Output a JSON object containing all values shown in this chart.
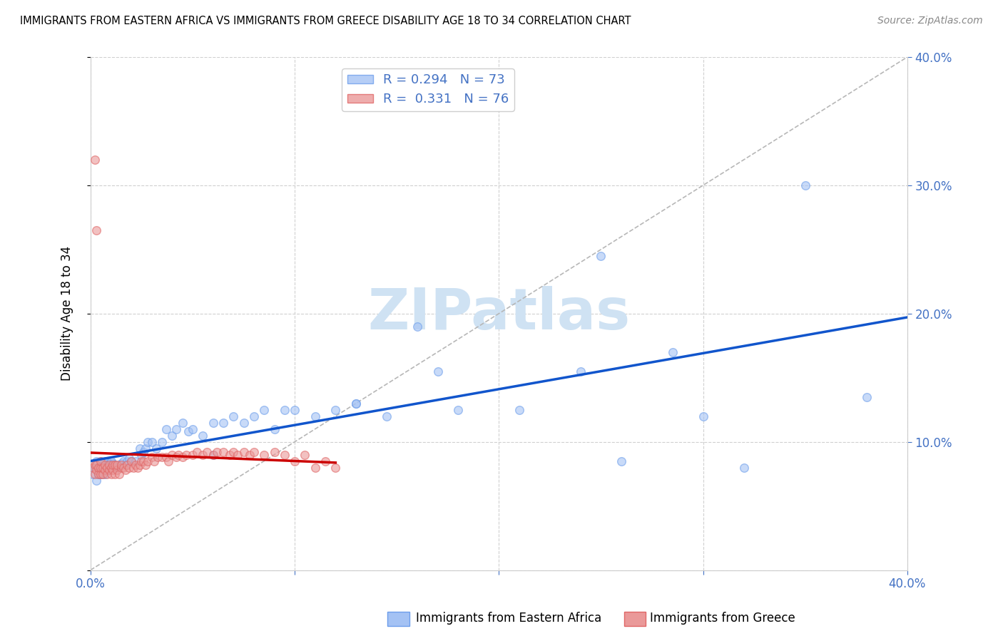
{
  "title": "IMMIGRANTS FROM EASTERN AFRICA VS IMMIGRANTS FROM GREECE DISABILITY AGE 18 TO 34 CORRELATION CHART",
  "source": "Source: ZipAtlas.com",
  "ylabel": "Disability Age 18 to 34",
  "r_eastern_africa": 0.294,
  "n_eastern_africa": 73,
  "r_greece": 0.331,
  "n_greece": 76,
  "color_eastern_africa": "#a4c2f4",
  "color_eastern_africa_edge": "#6d9eeb",
  "color_greece": "#ea9999",
  "color_greece_edge": "#e06666",
  "trendline_color_eastern_africa": "#1155cc",
  "trendline_color_greece": "#cc0000",
  "diagonal_color": "#b7b7b7",
  "legend_label_eastern_africa": "Immigrants from Eastern Africa",
  "legend_label_greece": "Immigrants from Greece",
  "watermark": "ZIPatlas",
  "watermark_color": "#cfe2f3",
  "background_color": "#ffffff",
  "xlim": [
    0.0,
    0.4
  ],
  "ylim": [
    0.0,
    0.4
  ],
  "tick_color": "#4472c4",
  "x_ea": [
    0.001,
    0.002,
    0.003,
    0.003,
    0.004,
    0.004,
    0.005,
    0.005,
    0.005,
    0.006,
    0.006,
    0.007,
    0.007,
    0.008,
    0.008,
    0.009,
    0.009,
    0.01,
    0.01,
    0.011,
    0.011,
    0.012,
    0.013,
    0.014,
    0.015,
    0.016,
    0.017,
    0.018,
    0.019,
    0.02,
    0.022,
    0.024,
    0.025,
    0.026,
    0.027,
    0.028,
    0.03,
    0.032,
    0.035,
    0.037,
    0.04,
    0.042,
    0.045,
    0.048,
    0.05,
    0.055,
    0.06,
    0.065,
    0.07,
    0.075,
    0.08,
    0.085,
    0.09,
    0.095,
    0.1,
    0.11,
    0.12,
    0.13,
    0.145,
    0.16,
    0.18,
    0.21,
    0.24,
    0.26,
    0.285,
    0.3,
    0.32,
    0.35,
    0.38,
    0.25,
    0.17,
    0.13,
    0.06
  ],
  "y_ea": [
    0.075,
    0.08,
    0.07,
    0.085,
    0.075,
    0.08,
    0.08,
    0.075,
    0.085,
    0.075,
    0.08,
    0.085,
    0.075,
    0.08,
    0.085,
    0.078,
    0.083,
    0.08,
    0.085,
    0.08,
    0.083,
    0.082,
    0.08,
    0.082,
    0.083,
    0.085,
    0.082,
    0.085,
    0.087,
    0.085,
    0.085,
    0.095,
    0.09,
    0.092,
    0.095,
    0.1,
    0.1,
    0.095,
    0.1,
    0.11,
    0.105,
    0.11,
    0.115,
    0.108,
    0.11,
    0.105,
    0.115,
    0.115,
    0.12,
    0.115,
    0.12,
    0.125,
    0.11,
    0.125,
    0.125,
    0.12,
    0.125,
    0.13,
    0.12,
    0.19,
    0.125,
    0.125,
    0.155,
    0.085,
    0.17,
    0.12,
    0.08,
    0.3,
    0.135,
    0.245,
    0.155,
    0.13,
    0.09
  ],
  "x_gr": [
    0.001,
    0.002,
    0.002,
    0.003,
    0.003,
    0.004,
    0.004,
    0.005,
    0.005,
    0.005,
    0.006,
    0.006,
    0.007,
    0.007,
    0.008,
    0.008,
    0.009,
    0.009,
    0.01,
    0.01,
    0.011,
    0.011,
    0.012,
    0.012,
    0.013,
    0.013,
    0.014,
    0.015,
    0.015,
    0.016,
    0.017,
    0.018,
    0.019,
    0.02,
    0.021,
    0.022,
    0.023,
    0.024,
    0.025,
    0.026,
    0.027,
    0.028,
    0.03,
    0.031,
    0.033,
    0.035,
    0.037,
    0.038,
    0.04,
    0.042,
    0.043,
    0.045,
    0.047,
    0.05,
    0.052,
    0.055,
    0.057,
    0.06,
    0.062,
    0.065,
    0.068,
    0.07,
    0.072,
    0.075,
    0.078,
    0.08,
    0.085,
    0.09,
    0.095,
    0.1,
    0.105,
    0.11,
    0.115,
    0.12,
    0.002,
    0.003
  ],
  "y_gr": [
    0.08,
    0.075,
    0.082,
    0.078,
    0.082,
    0.075,
    0.08,
    0.075,
    0.08,
    0.085,
    0.075,
    0.08,
    0.078,
    0.082,
    0.075,
    0.08,
    0.078,
    0.082,
    0.075,
    0.08,
    0.078,
    0.082,
    0.075,
    0.082,
    0.078,
    0.082,
    0.075,
    0.08,
    0.082,
    0.08,
    0.078,
    0.082,
    0.08,
    0.085,
    0.08,
    0.082,
    0.08,
    0.082,
    0.085,
    0.085,
    0.082,
    0.085,
    0.088,
    0.085,
    0.088,
    0.088,
    0.088,
    0.085,
    0.09,
    0.088,
    0.09,
    0.088,
    0.09,
    0.09,
    0.092,
    0.09,
    0.092,
    0.09,
    0.092,
    0.092,
    0.09,
    0.092,
    0.09,
    0.092,
    0.09,
    0.092,
    0.09,
    0.092,
    0.09,
    0.085,
    0.09,
    0.08,
    0.085,
    0.08,
    0.32,
    0.265
  ]
}
